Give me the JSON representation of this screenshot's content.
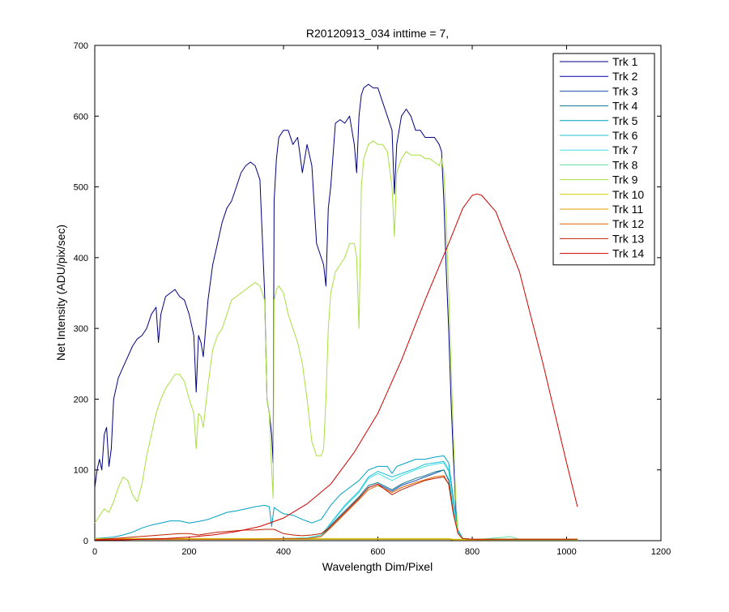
{
  "chart_data": {
    "type": "line",
    "title": "R20120913_034 inttime = 7,",
    "xlabel": "Wavelength Dim/Pixel",
    "ylabel": "Net Intensity (ADU/pix/sec)",
    "xlim": [
      0,
      1200
    ],
    "ylim": [
      0,
      700
    ],
    "xticks": [
      0,
      200,
      400,
      600,
      800,
      1000,
      1200
    ],
    "yticks": [
      0,
      100,
      200,
      300,
      400,
      500,
      600,
      700
    ],
    "grid": false,
    "legend_position": "top-right",
    "series": [
      {
        "name": "Trk 1",
        "color": "#000080",
        "x": [
          0,
          5,
          10,
          15,
          20,
          25,
          30,
          35,
          40,
          45,
          50,
          60,
          70,
          80,
          90,
          100,
          110,
          120,
          130,
          135,
          140,
          150,
          160,
          170,
          180,
          190,
          200,
          210,
          215,
          220,
          225,
          230,
          240,
          250,
          260,
          270,
          280,
          290,
          300,
          310,
          320,
          330,
          340,
          350,
          360,
          365,
          370,
          375,
          378,
          380,
          385,
          390,
          400,
          410,
          420,
          430,
          440,
          450,
          460,
          470,
          480,
          485,
          490,
          495,
          500,
          510,
          520,
          530,
          540,
          550,
          555,
          560,
          565,
          570,
          580,
          590,
          600,
          610,
          620,
          630,
          635,
          640,
          650,
          660,
          670,
          680,
          690,
          700,
          710,
          720,
          730,
          735,
          740,
          745,
          750,
          755,
          760,
          765,
          770,
          780,
          800,
          850,
          900,
          950,
          1000,
          1023
        ],
        "y": [
          75,
          100,
          115,
          100,
          150,
          160,
          105,
          130,
          200,
          215,
          230,
          245,
          260,
          275,
          285,
          290,
          300,
          320,
          330,
          280,
          320,
          345,
          350,
          355,
          345,
          340,
          320,
          290,
          210,
          290,
          280,
          260,
          340,
          390,
          420,
          450,
          470,
          480,
          500,
          520,
          530,
          535,
          530,
          510,
          350,
          200,
          180,
          150,
          110,
          480,
          540,
          570,
          580,
          580,
          560,
          570,
          520,
          560,
          530,
          420,
          400,
          390,
          360,
          470,
          500,
          590,
          595,
          590,
          600,
          560,
          520,
          600,
          630,
          640,
          645,
          640,
          640,
          620,
          600,
          580,
          490,
          560,
          600,
          610,
          600,
          580,
          580,
          570,
          570,
          570,
          560,
          550,
          480,
          380,
          300,
          200,
          120,
          50,
          10,
          2,
          1,
          1,
          1,
          1,
          1,
          1
        ]
      },
      {
        "name": "Trk 2",
        "color": "#0000a8",
        "x": [
          0,
          50,
          100,
          150,
          200,
          250,
          300,
          350,
          400,
          450,
          500,
          550,
          600,
          650,
          700,
          750,
          760,
          780,
          800,
          900,
          1023
        ],
        "y": [
          2,
          2,
          2,
          2,
          2,
          2,
          2,
          2,
          2,
          2,
          2,
          2,
          2,
          2,
          2,
          2,
          1,
          1,
          1,
          1,
          1
        ]
      },
      {
        "name": "Trk 3",
        "color": "#2050b0",
        "x": [
          0,
          50,
          100,
          150,
          200,
          250,
          300,
          350,
          400,
          450,
          480,
          500,
          530,
          560,
          580,
          600,
          630,
          650,
          680,
          700,
          720,
          740,
          750,
          760,
          770,
          780,
          800,
          900,
          1023
        ],
        "y": [
          2,
          2,
          2,
          2,
          2,
          2,
          2,
          2,
          3,
          3,
          6,
          20,
          40,
          60,
          75,
          80,
          70,
          78,
          85,
          90,
          95,
          100,
          85,
          40,
          10,
          3,
          2,
          2,
          2
        ]
      },
      {
        "name": "Trk 4",
        "color": "#107890",
        "x": [
          0,
          50,
          100,
          150,
          200,
          250,
          300,
          350,
          400,
          450,
          480,
          500,
          530,
          560,
          580,
          600,
          630,
          650,
          680,
          700,
          720,
          740,
          750,
          760,
          770,
          780,
          800,
          900,
          1023
        ],
        "y": [
          2,
          2,
          2,
          2,
          2,
          2,
          2,
          2,
          3,
          3,
          6,
          22,
          42,
          62,
          78,
          82,
          72,
          80,
          88,
          92,
          97,
          100,
          86,
          40,
          10,
          3,
          2,
          2,
          2
        ]
      },
      {
        "name": "Trk 5",
        "color": "#00a0c0",
        "x": [
          0,
          20,
          40,
          60,
          80,
          100,
          120,
          140,
          160,
          180,
          200,
          220,
          240,
          260,
          280,
          300,
          320,
          340,
          360,
          370,
          375,
          380,
          390,
          400,
          420,
          440,
          460,
          480,
          500,
          520,
          540,
          560,
          580,
          600,
          620,
          630,
          640,
          660,
          680,
          700,
          720,
          740,
          750,
          760,
          770,
          780,
          800,
          900,
          1023
        ],
        "y": [
          3,
          4,
          5,
          8,
          12,
          18,
          22,
          25,
          28,
          28,
          25,
          27,
          30,
          35,
          40,
          42,
          45,
          48,
          50,
          48,
          20,
          47,
          42,
          38,
          36,
          30,
          25,
          30,
          50,
          65,
          75,
          85,
          100,
          105,
          105,
          95,
          105,
          110,
          115,
          115,
          118,
          120,
          110,
          60,
          15,
          3,
          2,
          2,
          2
        ]
      },
      {
        "name": "Trk 6",
        "color": "#20c0d8",
        "x": [
          0,
          50,
          100,
          150,
          200,
          250,
          300,
          350,
          400,
          450,
          480,
          500,
          530,
          560,
          580,
          600,
          630,
          650,
          680,
          700,
          720,
          740,
          750,
          760,
          770,
          780,
          800,
          900,
          1023
        ],
        "y": [
          2,
          2,
          2,
          2,
          2,
          2,
          2,
          2,
          3,
          4,
          8,
          25,
          50,
          70,
          90,
          98,
          90,
          95,
          102,
          108,
          110,
          112,
          100,
          50,
          12,
          3,
          2,
          2,
          2
        ]
      },
      {
        "name": "Trk 7",
        "color": "#40e0e0",
        "x": [
          0,
          50,
          100,
          150,
          200,
          250,
          300,
          350,
          400,
          450,
          480,
          500,
          530,
          560,
          580,
          600,
          630,
          650,
          680,
          700,
          720,
          740,
          750,
          760,
          770,
          780,
          800,
          900,
          1023
        ],
        "y": [
          2,
          2,
          2,
          2,
          2,
          2,
          2,
          2,
          3,
          4,
          8,
          24,
          48,
          68,
          88,
          95,
          85,
          92,
          100,
          105,
          108,
          110,
          98,
          48,
          12,
          3,
          2,
          2,
          2
        ]
      },
      {
        "name": "Trk 8",
        "color": "#60e0a0",
        "x": [
          0,
          50,
          100,
          150,
          200,
          250,
          300,
          350,
          400,
          450,
          500,
          550,
          600,
          650,
          700,
          750,
          760,
          780,
          800,
          870,
          880,
          900,
          1023
        ],
        "y": [
          2,
          2,
          2,
          2,
          2,
          2,
          2,
          2,
          2,
          2,
          2,
          2,
          2,
          2,
          2,
          2,
          1,
          1,
          1,
          5,
          6,
          2,
          1
        ]
      },
      {
        "name": "Trk 9",
        "color": "#a8e040",
        "x": [
          0,
          10,
          20,
          30,
          40,
          50,
          60,
          70,
          80,
          90,
          100,
          110,
          120,
          130,
          140,
          150,
          160,
          170,
          180,
          190,
          200,
          210,
          215,
          220,
          225,
          230,
          240,
          250,
          260,
          270,
          280,
          290,
          300,
          310,
          320,
          330,
          340,
          350,
          360,
          365,
          370,
          375,
          378,
          380,
          385,
          390,
          400,
          410,
          420,
          430,
          440,
          450,
          460,
          470,
          480,
          485,
          490,
          495,
          500,
          510,
          520,
          530,
          540,
          550,
          555,
          560,
          565,
          570,
          580,
          590,
          600,
          610,
          620,
          630,
          635,
          640,
          650,
          660,
          670,
          680,
          690,
          700,
          710,
          720,
          730,
          735,
          740,
          745,
          750,
          755,
          760,
          765,
          770,
          780,
          800,
          850,
          900,
          950,
          1000,
          1023
        ],
        "y": [
          25,
          35,
          45,
          40,
          55,
          75,
          90,
          85,
          65,
          55,
          80,
          120,
          150,
          180,
          200,
          215,
          225,
          235,
          235,
          225,
          200,
          180,
          130,
          180,
          175,
          160,
          220,
          270,
          290,
          300,
          320,
          340,
          345,
          350,
          355,
          360,
          365,
          360,
          340,
          200,
          180,
          100,
          60,
          340,
          355,
          360,
          350,
          320,
          300,
          280,
          250,
          200,
          140,
          120,
          120,
          130,
          200,
          300,
          350,
          380,
          390,
          400,
          420,
          420,
          400,
          300,
          500,
          540,
          560,
          565,
          560,
          560,
          550,
          500,
          430,
          520,
          540,
          550,
          545,
          545,
          545,
          540,
          540,
          535,
          530,
          540,
          520,
          450,
          350,
          250,
          150,
          60,
          10,
          2,
          1,
          1,
          1,
          1,
          1,
          1
        ]
      },
      {
        "name": "Trk 10",
        "color": "#d0d000",
        "x": [
          0,
          50,
          100,
          150,
          200,
          250,
          300,
          350,
          400,
          450,
          500,
          550,
          600,
          650,
          700,
          750,
          760,
          780,
          800,
          900,
          1023
        ],
        "y": [
          3,
          3,
          3,
          3,
          3,
          3,
          3,
          3,
          3,
          3,
          3,
          3,
          3,
          3,
          3,
          3,
          2,
          2,
          2,
          2,
          2
        ]
      },
      {
        "name": "Trk 11",
        "color": "#e0a000",
        "x": [
          0,
          50,
          100,
          150,
          200,
          250,
          300,
          350,
          400,
          450,
          500,
          550,
          600,
          650,
          700,
          750,
          760,
          780,
          800,
          900,
          1023
        ],
        "y": [
          2,
          2,
          2,
          2,
          2,
          2,
          2,
          2,
          2,
          2,
          2,
          2,
          2,
          2,
          2,
          2,
          1,
          1,
          1,
          2,
          2
        ]
      },
      {
        "name": "Trk 12",
        "color": "#e06000",
        "x": [
          0,
          50,
          100,
          150,
          200,
          250,
          300,
          350,
          400,
          450,
          480,
          500,
          530,
          560,
          580,
          600,
          630,
          650,
          680,
          700,
          720,
          740,
          750,
          760,
          770,
          780,
          800,
          900,
          1023
        ],
        "y": [
          2,
          2,
          2,
          2,
          2,
          2,
          2,
          2,
          3,
          3,
          6,
          18,
          38,
          58,
          72,
          78,
          68,
          75,
          82,
          86,
          90,
          92,
          80,
          38,
          10,
          3,
          2,
          2,
          2
        ]
      },
      {
        "name": "Trk 13",
        "color": "#c02000",
        "x": [
          0,
          20,
          40,
          60,
          80,
          100,
          120,
          140,
          160,
          180,
          200,
          220,
          240,
          260,
          280,
          300,
          320,
          340,
          360,
          380,
          400,
          420,
          440,
          460,
          480,
          500,
          530,
          560,
          580,
          600,
          630,
          650,
          680,
          700,
          720,
          740,
          750,
          760,
          770,
          780,
          800,
          900,
          1023
        ],
        "y": [
          1,
          2,
          3,
          4,
          5,
          6,
          7,
          8,
          9,
          10,
          10,
          8,
          10,
          12,
          13,
          14,
          15,
          15,
          16,
          16,
          10,
          8,
          7,
          8,
          10,
          20,
          40,
          60,
          75,
          80,
          65,
          72,
          80,
          85,
          88,
          90,
          80,
          38,
          10,
          3,
          2,
          2,
          2
        ]
      },
      {
        "name": "Trk 14",
        "color": "#d00000",
        "x": [
          0,
          50,
          100,
          150,
          200,
          250,
          300,
          350,
          400,
          450,
          500,
          550,
          600,
          650,
          700,
          750,
          780,
          800,
          810,
          820,
          850,
          900,
          950,
          1000,
          1023
        ],
        "y": [
          1,
          1,
          2,
          3,
          5,
          8,
          13,
          20,
          32,
          52,
          80,
          125,
          180,
          255,
          340,
          420,
          470,
          488,
          490,
          488,
          465,
          380,
          250,
          110,
          48
        ]
      }
    ]
  }
}
